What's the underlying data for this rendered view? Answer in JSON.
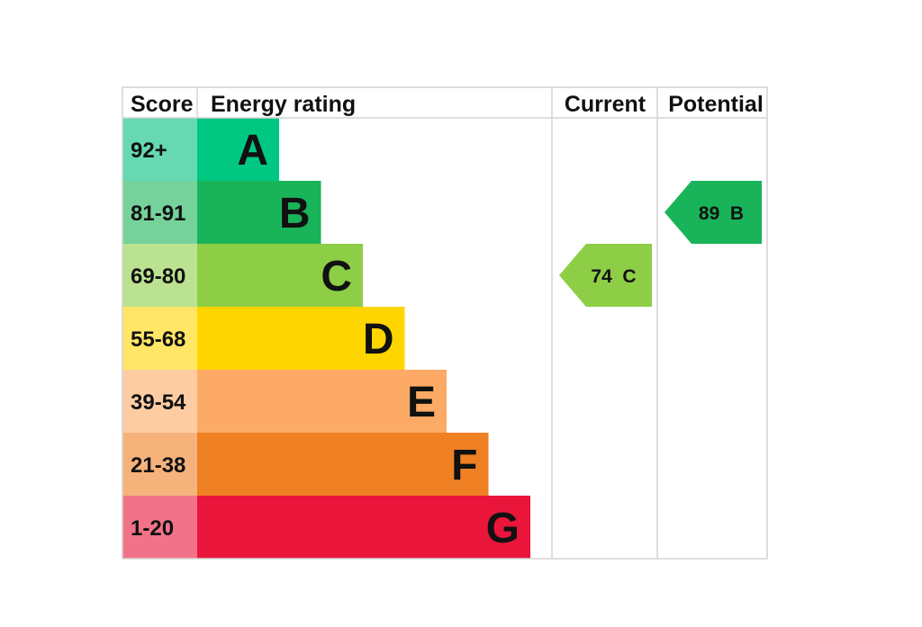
{
  "headers": {
    "score": "Score",
    "rating": "Energy rating",
    "current": "Current",
    "potential": "Potential"
  },
  "chart_data": {
    "type": "bar",
    "categories": [
      "A",
      "B",
      "C",
      "D",
      "E",
      "F",
      "G"
    ],
    "score_ranges": [
      "92+",
      "81-91",
      "69-80",
      "55-68",
      "39-54",
      "21-38",
      "1-20"
    ],
    "colors": [
      "#00c781",
      "#19b459",
      "#8dce46",
      "#ffd500",
      "#fcaa65",
      "#ef8023",
      "#e9153b"
    ],
    "score_cell_colors": [
      "#66d9b3",
      "#75d29b",
      "#bbe291",
      "#ffe666",
      "#fdcca3",
      "#f5b37b",
      "#f27389"
    ],
    "current": {
      "score": 74,
      "band": "C",
      "label": "74 C",
      "color": "#8dce46"
    },
    "potential": {
      "score": 89,
      "band": "B",
      "label": "89 B",
      "color": "#19b459"
    }
  }
}
